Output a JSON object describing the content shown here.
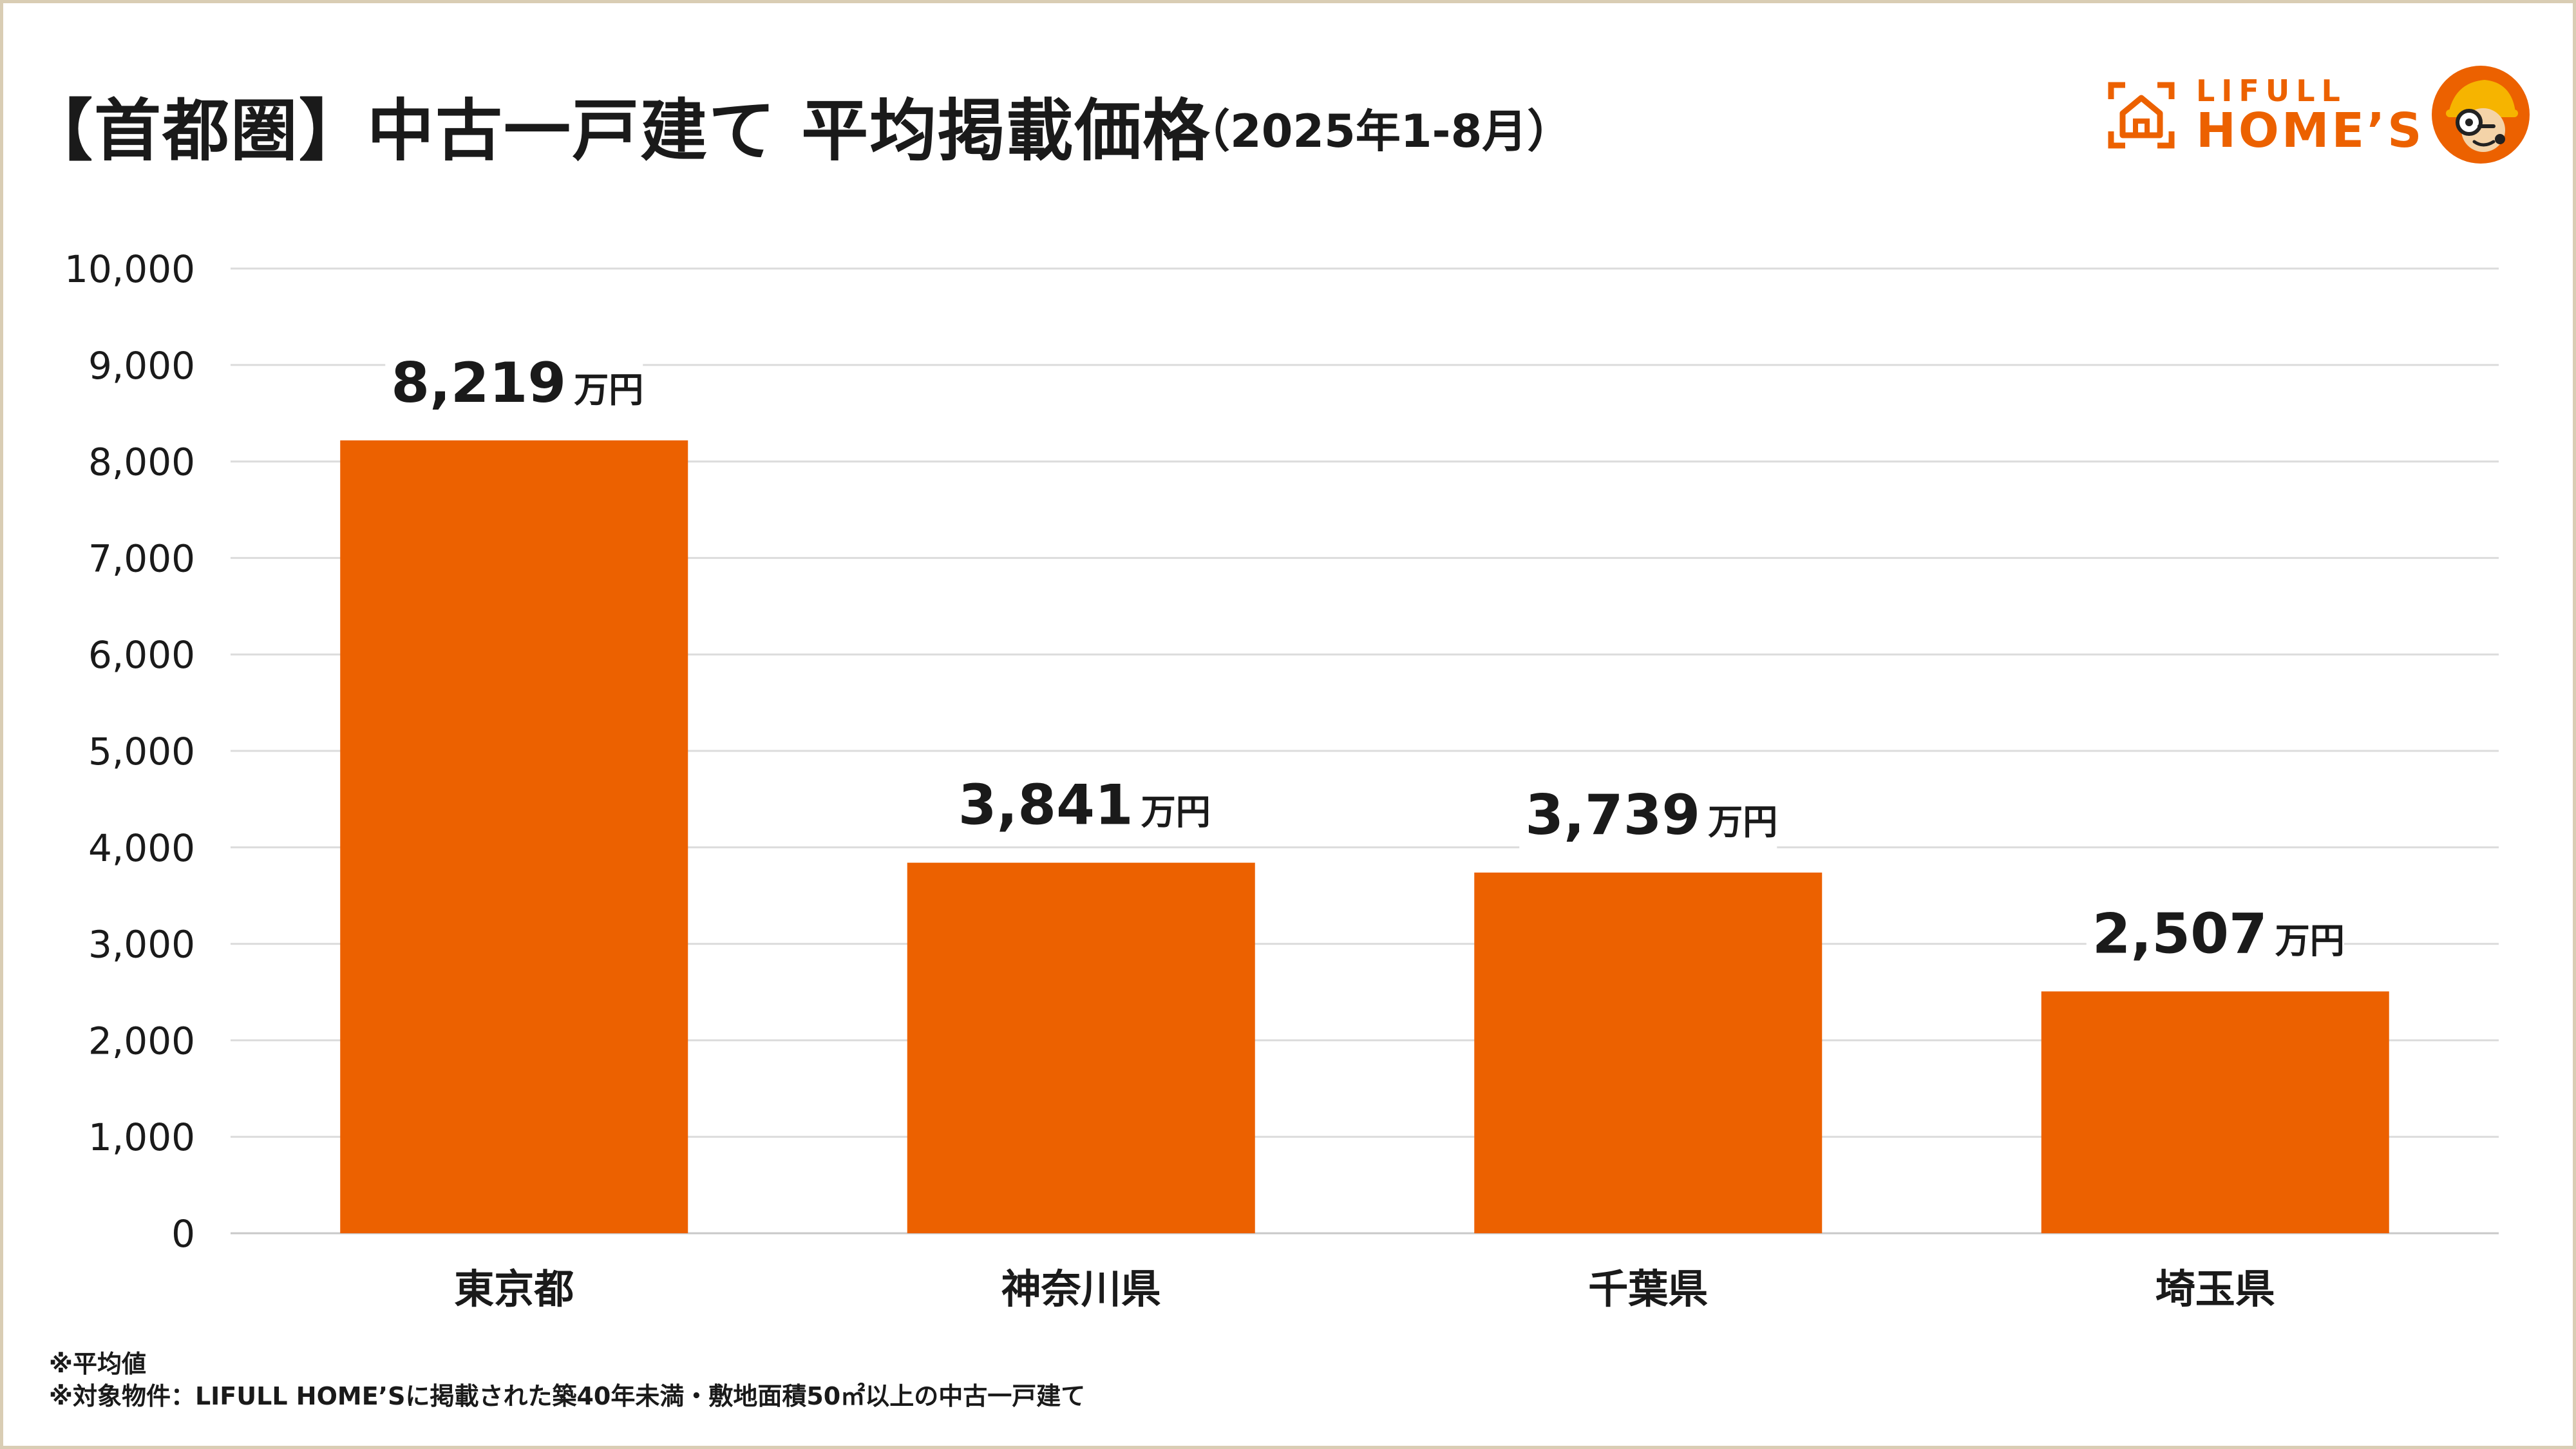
{
  "header": {
    "title": "【首都圏】中古一戸建て 平均掲載価格",
    "subtitle": "（2025年1-8月）"
  },
  "logo": {
    "line1": "LIFULL",
    "line2": "HOME’S",
    "brand_color": "#EC6100"
  },
  "chart_data": {
    "type": "bar",
    "title": "【首都圏】中古一戸建て 平均掲載価格",
    "subtitle": "（2025年1-8月）",
    "categories": [
      "東京都",
      "神奈川県",
      "千葉県",
      "埼玉県"
    ],
    "values": [
      8219,
      3841,
      3739,
      2507
    ],
    "value_labels": [
      "8,219",
      "3,841",
      "3,739",
      "2,507"
    ],
    "value_unit": "万円",
    "ylim": [
      0,
      10000
    ],
    "yticks": [
      "0",
      "1,000",
      "2,000",
      "3,000",
      "4,000",
      "5,000",
      "6,000",
      "7,000",
      "8,000",
      "9,000",
      "10,000"
    ],
    "grid": true,
    "bar_color": "#EC6100",
    "xlabel": "",
    "ylabel": ""
  },
  "notes": [
    "※平均値",
    "※対象物件：LIFULL HOME’Sに掲載された築40年未満・敷地面積50㎡以上の中古一戸建て"
  ]
}
